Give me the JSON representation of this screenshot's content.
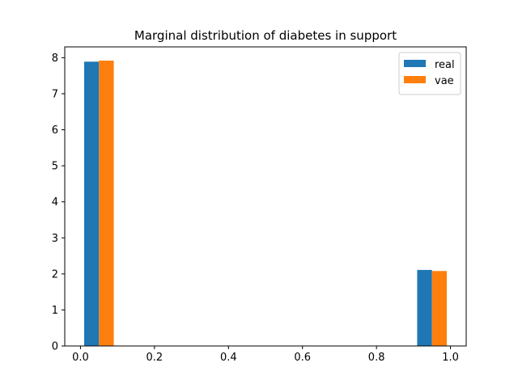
{
  "chart_data": {
    "type": "bar",
    "title": "Marginal distribution of diabetes in support",
    "xlabel": "",
    "ylabel": "",
    "xlim": [
      -0.0425,
      1.0425
    ],
    "ylim": [
      0,
      8.3
    ],
    "x_ticks": [
      0.0,
      0.2,
      0.4,
      0.6,
      0.8,
      1.0
    ],
    "x_tick_labels": [
      "0.0",
      "0.2",
      "0.4",
      "0.6",
      "0.8",
      "1.0"
    ],
    "y_ticks": [
      0,
      1,
      2,
      3,
      4,
      5,
      6,
      7,
      8
    ],
    "y_tick_labels": [
      "0",
      "1",
      "2",
      "3",
      "4",
      "5",
      "6",
      "7",
      "8"
    ],
    "bin_edges": [
      0.0,
      0.1,
      0.9,
      1.0
    ],
    "bar_width": 0.04,
    "series": [
      {
        "name": "real",
        "color": "#1f77b4",
        "x": [
          0.03,
          0.93
        ],
        "values": [
          7.89,
          2.11
        ]
      },
      {
        "name": "vae",
        "color": "#ff7f0e",
        "x": [
          0.07,
          0.97
        ],
        "values": [
          7.92,
          2.08
        ]
      }
    ],
    "legend": {
      "placement": "top-right",
      "entries": [
        "real",
        "vae"
      ]
    },
    "grid": false
  }
}
